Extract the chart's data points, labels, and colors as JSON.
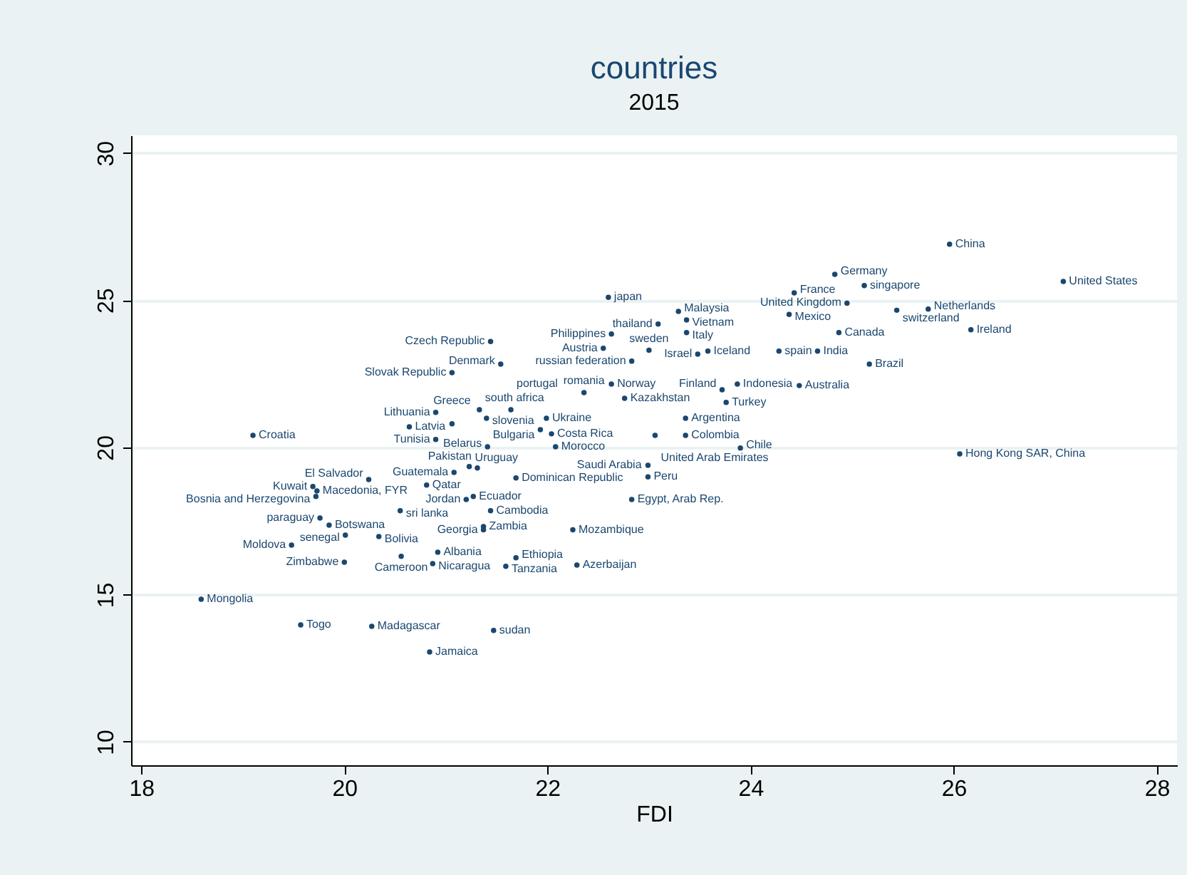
{
  "chart_data": {
    "type": "scatter",
    "title": "countries",
    "subtitle": "2015",
    "xlabel": "FDI",
    "color": "#1a476f",
    "marker": "circle",
    "grid": "y",
    "xlim": [
      17.9,
      28.2
    ],
    "ylim": [
      9.2,
      30.6
    ],
    "xticks": [
      18,
      20,
      22,
      24,
      26,
      28
    ],
    "yticks": [
      10,
      15,
      20,
      25,
      30
    ],
    "value_labels": [
      "China",
      "United States",
      "Germany",
      "singapore",
      "France",
      "United Kingdom",
      "switzerland",
      "Netherlands",
      "Mexico",
      "Ireland",
      "Canada",
      "India",
      "Brazil",
      "Australia",
      "Indonesia",
      "japan",
      "Malaysia",
      "thailand",
      "Vietnam",
      "Philippines",
      "Italy",
      "Czech Republic",
      "Austria",
      "sweden",
      "Israel",
      "Iceland",
      "spain",
      "russian federation",
      "Denmark",
      "Slovak Republic",
      "Norway",
      "romania",
      "Kazakhstan",
      "Finland",
      "Turkey",
      "Argentina",
      "United Arab Emirates",
      "Colombia",
      "Chile",
      "Lithuania",
      "south africa",
      "portugal",
      "Latvia",
      "Greece",
      "slovenia",
      "Ukraine",
      "Bulgaria",
      "Costa Rica",
      "Tunisia",
      "Belarus",
      "Morocco",
      "Croatia",
      "Hong Kong SAR, China",
      "Saudi Arabia",
      "Dominican Republic",
      "Peru",
      "Uruguay",
      "Pakistan",
      "Guatemala",
      "El Salvador",
      "Qatar",
      "Macedonia, FYR",
      "Kuwait",
      "Bosnia and Herzegovina",
      "Ecuador",
      "Jordan",
      "Egypt, Arab Rep.",
      "sri lanka",
      "Cambodia",
      "paraguay",
      "Botswana",
      "senegal",
      "Bolivia",
      "Zambia",
      "Georgia",
      "Mozambique",
      "Moldova",
      "Albania",
      "Cameroon",
      "Zimbabwe",
      "Nicaragua",
      "Ethiopia",
      "Tanzania",
      "Azerbaijan",
      "Mongolia",
      "Togo",
      "Madagascar",
      "sudan",
      "Jamaica"
    ],
    "x": [
      25.96,
      27.08,
      24.83,
      25.12,
      24.43,
      24.95,
      25.44,
      25.75,
      24.38,
      26.17,
      24.87,
      24.66,
      25.17,
      24.48,
      23.87,
      22.6,
      23.29,
      23.09,
      23.37,
      22.63,
      23.37,
      21.44,
      22.55,
      23.0,
      23.48,
      23.58,
      24.28,
      22.83,
      21.54,
      21.06,
      22.63,
      22.36,
      22.76,
      23.72,
      23.76,
      23.36,
      23.06,
      23.36,
      23.9,
      20.9,
      21.33,
      21.64,
      20.64,
      21.06,
      21.4,
      21.99,
      21.93,
      22.04,
      20.9,
      21.41,
      22.08,
      19.1,
      26.06,
      22.99,
      21.69,
      22.99,
      21.23,
      21.31,
      21.08,
      20.24,
      20.81,
      19.73,
      19.69,
      19.72,
      21.27,
      21.2,
      22.83,
      20.55,
      21.44,
      19.76,
      19.85,
      20.01,
      20.34,
      21.37,
      21.37,
      22.25,
      19.48,
      20.92,
      20.56,
      20.0,
      20.87,
      21.69,
      21.59,
      22.29,
      18.59,
      19.57,
      20.27,
      21.47,
      20.84
    ],
    "values": [
      26.9,
      25.64,
      25.88,
      25.5,
      25.25,
      24.9,
      24.66,
      24.7,
      24.52,
      24.0,
      23.9,
      23.27,
      22.83,
      22.1,
      22.15,
      25.1,
      24.62,
      24.19,
      24.33,
      23.85,
      23.9,
      23.6,
      23.37,
      23.3,
      23.17,
      23.27,
      23.27,
      22.93,
      22.83,
      22.54,
      22.15,
      21.86,
      21.67,
      21.96,
      21.53,
      20.99,
      20.41,
      20.41,
      19.98,
      21.19,
      21.28,
      21.28,
      20.7,
      20.8,
      20.99,
      20.99,
      20.6,
      20.46,
      20.27,
      20.02,
      20.02,
      20.41,
      19.78,
      19.39,
      18.96,
      19.0,
      19.35,
      19.3,
      19.15,
      18.91,
      18.72,
      18.52,
      18.67,
      18.33,
      18.33,
      18.23,
      18.23,
      17.85,
      17.85,
      17.6,
      17.36,
      17.02,
      16.97,
      17.31,
      17.2,
      17.2,
      16.68,
      16.44,
      16.3,
      16.1,
      16.05,
      16.25,
      15.96,
      16.0,
      14.84,
      13.97,
      13.92,
      13.78,
      13.05
    ]
  }
}
